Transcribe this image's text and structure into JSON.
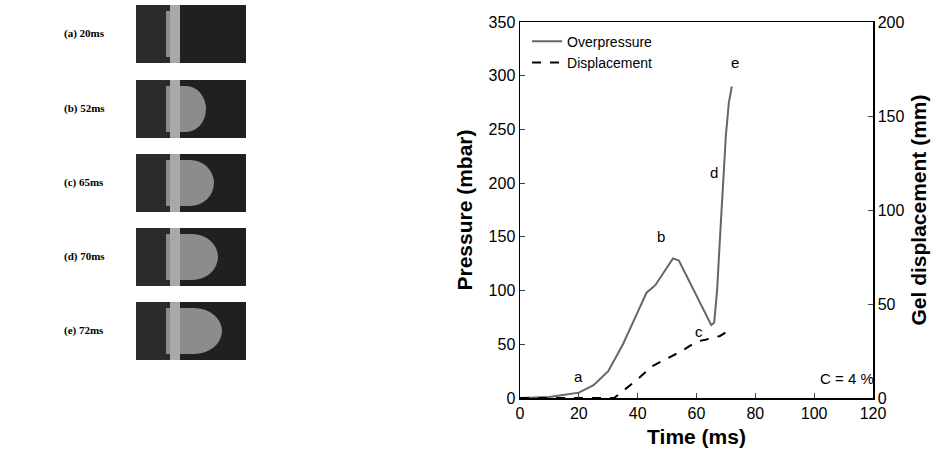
{
  "frames": [
    {
      "label": "(a) 20ms"
    },
    {
      "label": "(b) 52ms"
    },
    {
      "label": "(c) 65ms"
    },
    {
      "label": "(d) 70ms"
    },
    {
      "label": "(e) 72ms"
    }
  ],
  "chart_data": {
    "type": "line",
    "x_label": "Time (ms)",
    "y_label": "Pressure (mbar)",
    "y2_label": "Gel displacement (mm)",
    "xlim": [
      0,
      120
    ],
    "xticks": [
      0,
      20,
      40,
      60,
      80,
      100,
      120
    ],
    "ylim": [
      0,
      350
    ],
    "yticks": [
      0,
      50,
      100,
      150,
      200,
      250,
      300,
      350
    ],
    "y2lim": [
      0,
      200
    ],
    "y2ticks": [
      0,
      50,
      100,
      150,
      200
    ],
    "grid": false,
    "legend": "top left",
    "series": [
      {
        "name": "Overpressure",
        "color": "#666666",
        "line_style": "solid",
        "x": [
          0,
          10,
          20,
          25,
          30,
          35,
          40,
          43,
          46,
          50,
          52,
          54,
          57,
          60,
          63,
          65,
          66,
          67,
          68,
          69,
          70,
          71,
          72
        ],
        "values": [
          0,
          1,
          5,
          12,
          25,
          50,
          80,
          98,
          105,
          122,
          130,
          128,
          112,
          95,
          80,
          68,
          70,
          100,
          150,
          200,
          245,
          275,
          290
        ]
      },
      {
        "name": "Displacement",
        "color": "#000000",
        "line_style": "dash",
        "axis": "y2",
        "x": [
          0,
          10,
          20,
          32,
          36,
          40,
          45,
          50,
          55,
          58,
          60,
          63,
          66,
          68,
          70,
          72
        ],
        "values": [
          0,
          0,
          0,
          0,
          5,
          10,
          17,
          21,
          25,
          28,
          30,
          31,
          32,
          33,
          35,
          38
        ]
      }
    ],
    "annotations": [
      {
        "text": "a",
        "x": 20,
        "y": 20
      },
      {
        "text": "b",
        "x": 48,
        "y": 150
      },
      {
        "text": "c",
        "x": 61,
        "y": 62
      },
      {
        "text": "d",
        "x": 66,
        "y": 210
      },
      {
        "text": "e",
        "x": 73,
        "y": 312
      },
      {
        "text": "C = 4 %",
        "x": 111,
        "y": 18
      }
    ]
  }
}
